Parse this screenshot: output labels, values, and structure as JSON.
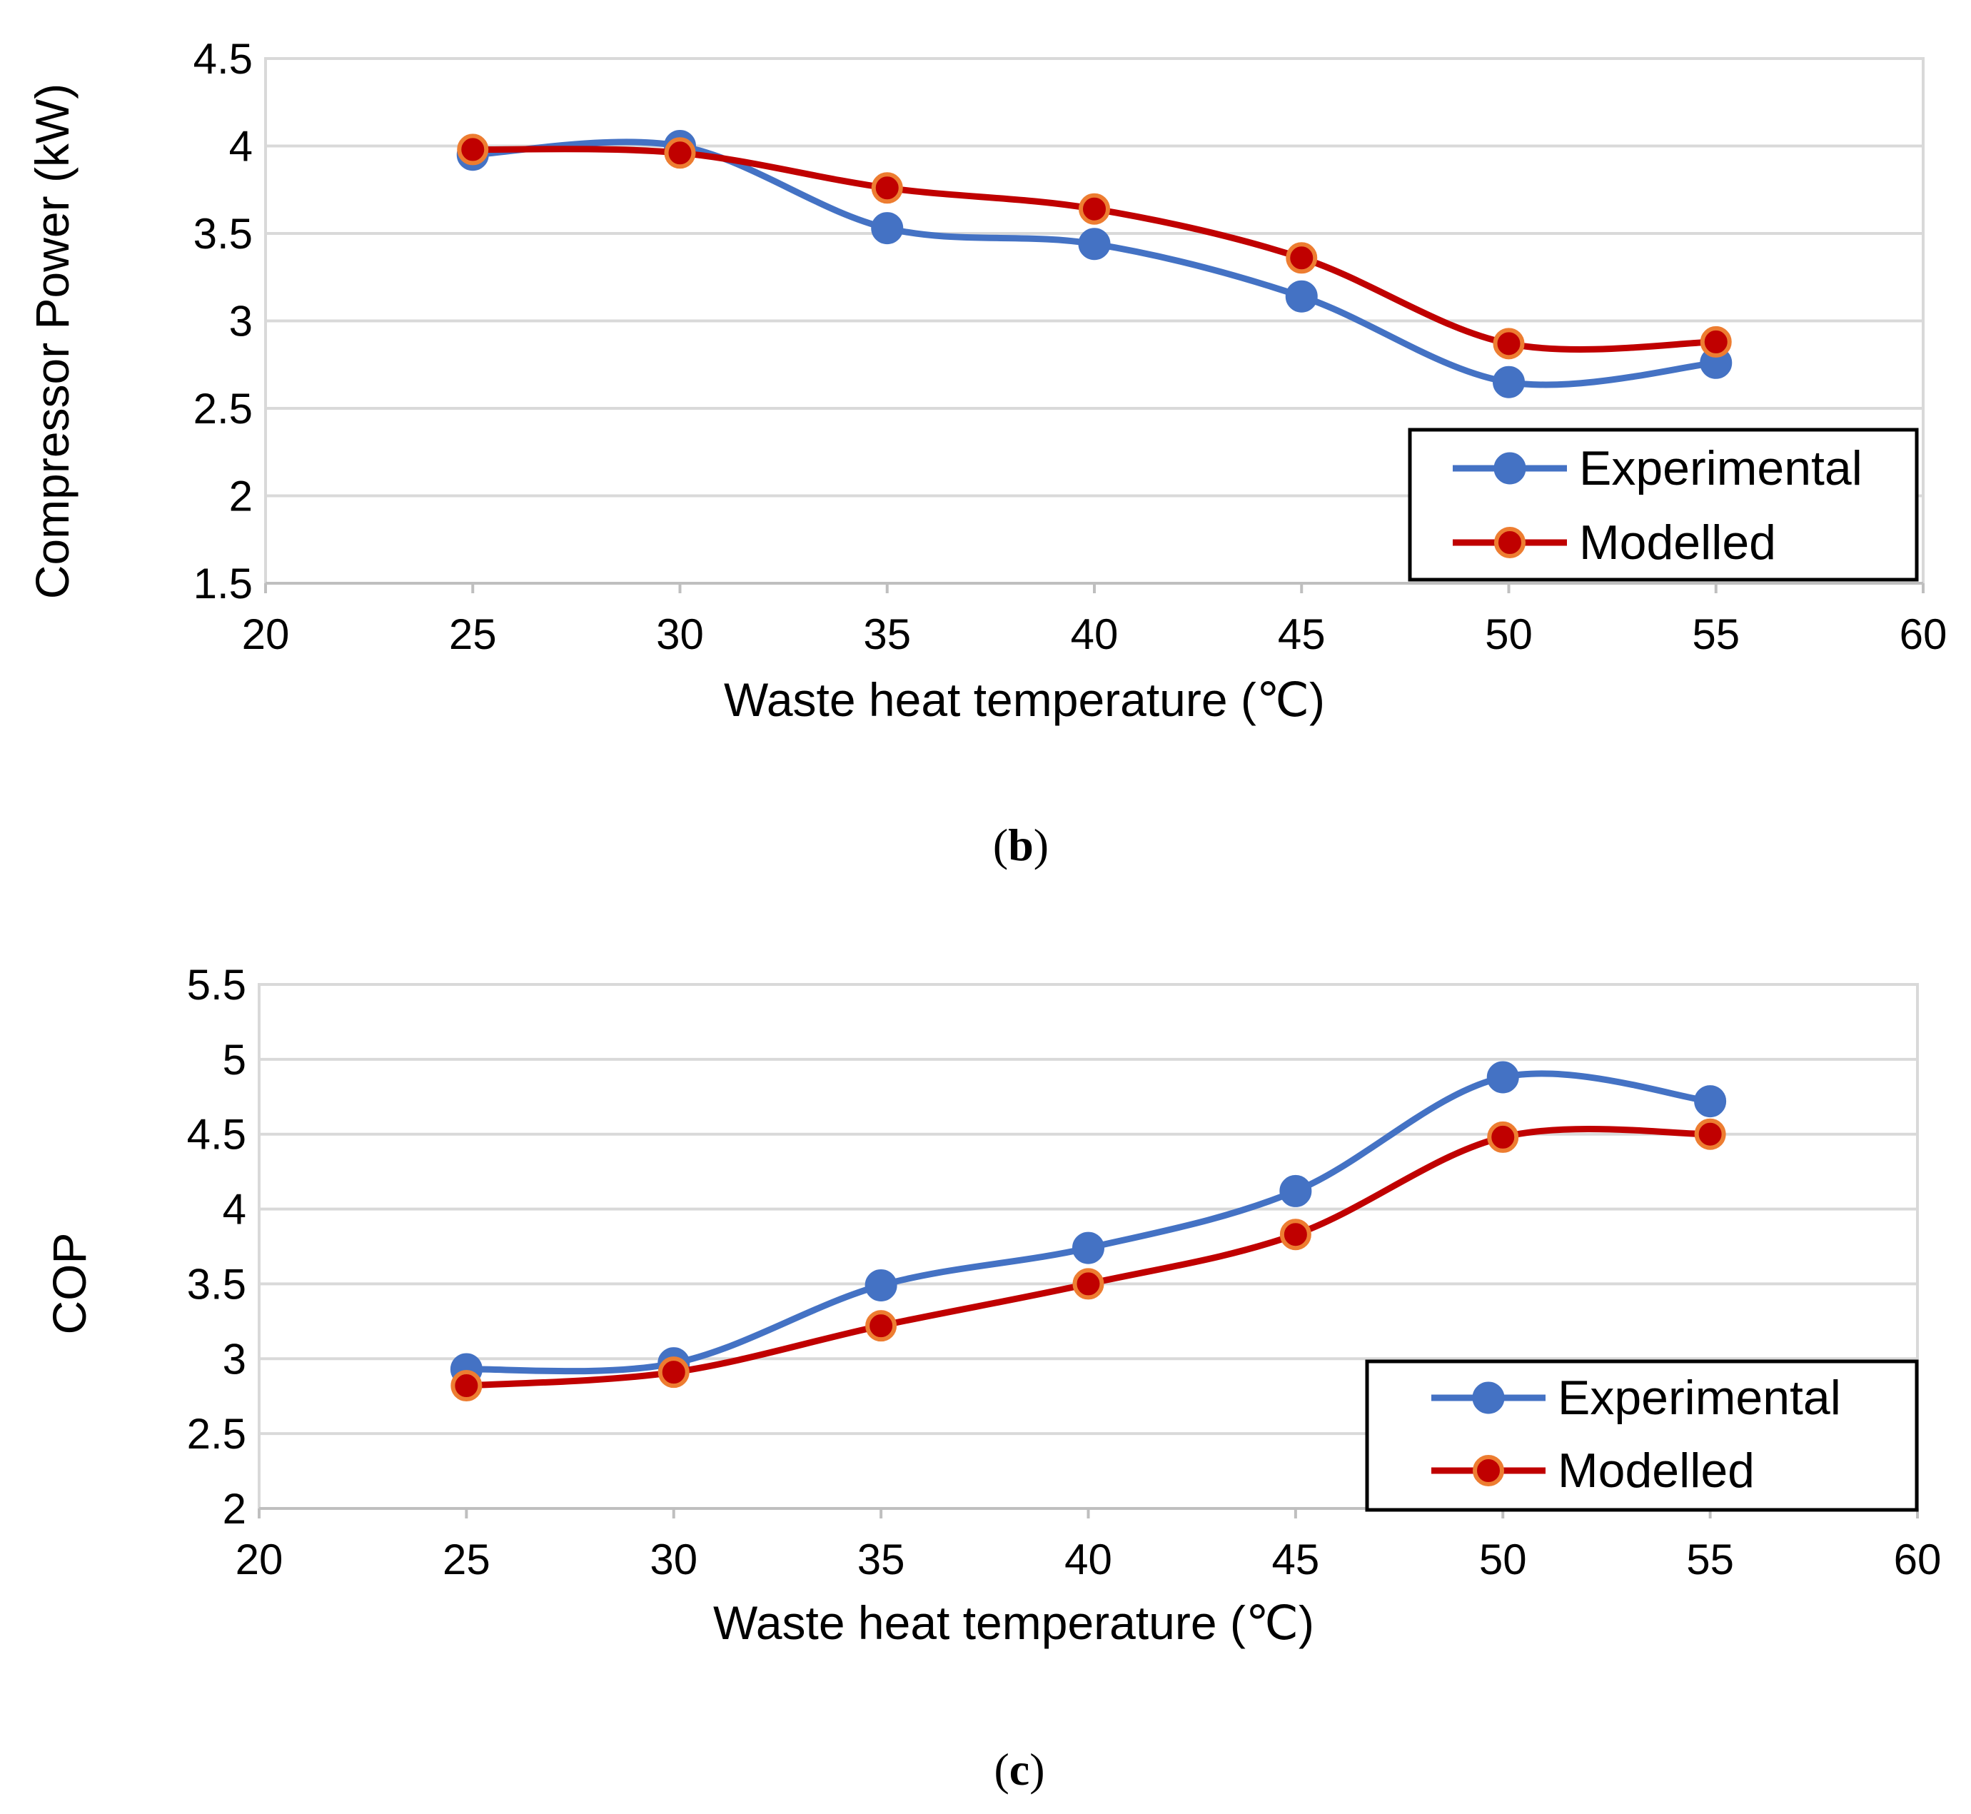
{
  "chart_data": [
    {
      "type": "line",
      "panel": "(b)",
      "caption_letter": "b",
      "title": "",
      "xlabel": "Waste heat temperature (℃)",
      "ylabel": "Compressor Power (kW)",
      "xlim": [
        20,
        60
      ],
      "ylim": [
        1.5,
        4.5
      ],
      "xticks": [
        20,
        25,
        30,
        35,
        40,
        45,
        50,
        55,
        60
      ],
      "yticks": [
        1.5,
        2,
        2.5,
        3,
        3.5,
        4,
        4.5
      ],
      "x": [
        25,
        30,
        35,
        40,
        45,
        50,
        55
      ],
      "grid": "horizontal",
      "legend_position": "bottom-right",
      "series": [
        {
          "name": "Experimental",
          "color": "#4472C4",
          "marker_edge": "#4472C4",
          "values": [
            3.95,
            4.0,
            3.53,
            3.44,
            3.14,
            2.65,
            2.76
          ]
        },
        {
          "name": "Modelled",
          "color": "#C00000",
          "marker_edge": "#ED7D31",
          "values": [
            3.98,
            3.96,
            3.76,
            3.64,
            3.36,
            2.87,
            2.88
          ]
        }
      ]
    },
    {
      "type": "line",
      "panel": "(c)",
      "caption_letter": "c",
      "title": "",
      "xlabel": "Waste heat temperature (℃)",
      "ylabel": "COP",
      "xlim": [
        20,
        60
      ],
      "ylim": [
        2,
        5.5
      ],
      "xticks": [
        20,
        25,
        30,
        35,
        40,
        45,
        50,
        55,
        60
      ],
      "yticks": [
        2,
        2.5,
        3,
        3.5,
        4,
        4.5,
        5,
        5.5
      ],
      "x": [
        25,
        30,
        35,
        40,
        45,
        50,
        55
      ],
      "grid": "horizontal",
      "legend_position": "bottom-right",
      "series": [
        {
          "name": "Experimental",
          "color": "#4472C4",
          "marker_edge": "#4472C4",
          "values": [
            2.93,
            2.97,
            3.49,
            3.74,
            4.12,
            4.88,
            4.72
          ]
        },
        {
          "name": "Modelled",
          "color": "#C00000",
          "marker_edge": "#ED7D31",
          "values": [
            2.82,
            2.91,
            3.22,
            3.5,
            3.83,
            4.48,
            4.5
          ]
        }
      ]
    }
  ]
}
